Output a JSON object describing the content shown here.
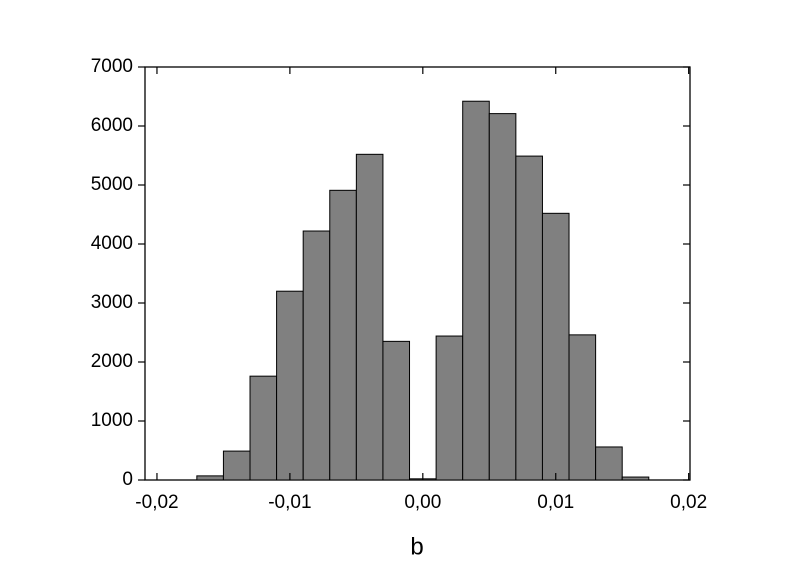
{
  "chart_data": {
    "type": "histogram",
    "x_label": "b",
    "bins": [
      -0.017,
      -0.015,
      -0.013,
      -0.011,
      -0.009,
      -0.007,
      -0.005,
      -0.003,
      -0.001,
      0.001,
      0.003,
      0.005,
      0.007,
      0.009,
      0.011,
      0.013,
      0.015,
      0.017
    ],
    "counts": [
      70,
      490,
      1760,
      3200,
      4220,
      4910,
      5520,
      2350,
      20,
      2440,
      6420,
      6210,
      5490,
      4520,
      2460,
      560,
      50
    ],
    "color": "#808080",
    "xlim": [
      -0.0209,
      0.0201
    ],
    "xticks": [
      {
        "value": -0.02,
        "label": "-0,02"
      },
      {
        "value": -0.01,
        "label": "-0,01"
      },
      {
        "value": 0,
        "label": "0,00"
      },
      {
        "value": 0.01,
        "label": "0,01"
      },
      {
        "value": 0.02,
        "label": "0,02"
      }
    ],
    "ylim": [
      0,
      7000
    ],
    "yticks": [
      0,
      1000,
      2000,
      3000,
      4000,
      5000,
      6000,
      7000
    ]
  }
}
